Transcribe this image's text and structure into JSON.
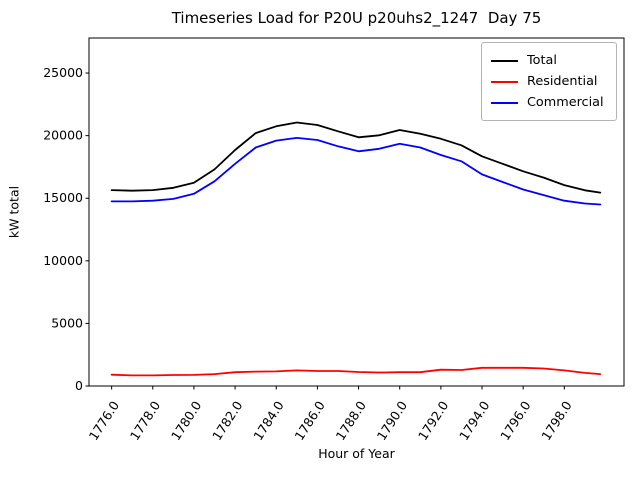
{
  "chart_data": {
    "type": "line",
    "title": "Timeseries Load for P20U p20uhs2_1247  Day 75",
    "xlabel": "Hour of Year",
    "ylabel": "kW total",
    "grid": false,
    "legend_position": "upper right",
    "xlim": [
      1774.9,
      1800.9
    ],
    "ylim": [
      0,
      27800
    ],
    "xticks": [
      1776,
      1778,
      1780,
      1782,
      1784,
      1786,
      1788,
      1790,
      1792,
      1794,
      1796,
      1798
    ],
    "xtick_labels": [
      "1776.0",
      "1778.0",
      "1780.0",
      "1782.0",
      "1784.0",
      "1786.0",
      "1788.0",
      "1790.0",
      "1792.0",
      "1794.0",
      "1796.0",
      "1798.0"
    ],
    "yticks": [
      0,
      5000,
      10000,
      15000,
      20000,
      25000
    ],
    "ytick_labels": [
      "0",
      "5000",
      "10000",
      "15000",
      "20000",
      "25000"
    ],
    "x": [
      1776,
      1777,
      1778,
      1779,
      1780,
      1781,
      1782,
      1783,
      1784,
      1785,
      1786,
      1787,
      1788,
      1789,
      1790,
      1791,
      1792,
      1793,
      1794,
      1795,
      1796,
      1797,
      1798,
      1799,
      1799.75
    ],
    "series": [
      {
        "name": "Total",
        "color": "#000000",
        "values": [
          15650,
          15600,
          15650,
          15830,
          16240,
          17300,
          18850,
          20200,
          20750,
          21050,
          20850,
          20350,
          19870,
          20030,
          20450,
          20150,
          19750,
          19230,
          18350,
          17750,
          17150,
          16650,
          16050,
          15630,
          15450
        ]
      },
      {
        "name": "Residential",
        "color": "#ff0000",
        "values": [
          900,
          850,
          850,
          880,
          890,
          950,
          1100,
          1150,
          1170,
          1250,
          1200,
          1200,
          1120,
          1080,
          1100,
          1100,
          1300,
          1280,
          1450,
          1450,
          1450,
          1400,
          1250,
          1050,
          950
        ]
      },
      {
        "name": "Commercial",
        "color": "#0000ff",
        "values": [
          14750,
          14750,
          14800,
          14950,
          15350,
          16350,
          17750,
          19050,
          19600,
          19820,
          19650,
          19150,
          18750,
          18950,
          19350,
          19050,
          18450,
          17950,
          16900,
          16300,
          15700,
          15250,
          14800,
          14580,
          14500
        ]
      }
    ]
  }
}
